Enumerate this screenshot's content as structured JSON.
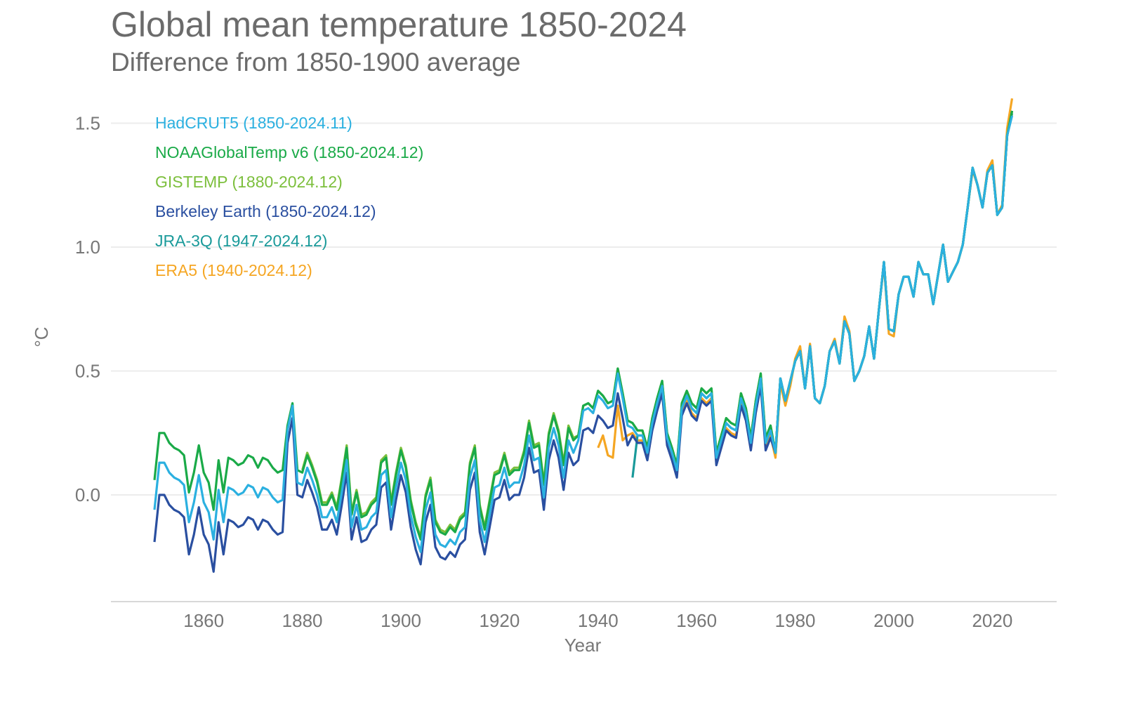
{
  "chart_data": {
    "type": "line",
    "title": "Global mean temperature 1850-2024",
    "subtitle": "Difference from 1850-1900 average",
    "xlabel": "Year",
    "ylabel": "°C",
    "xlim": [
      1850,
      2032
    ],
    "ylim": [
      -0.43,
      1.65
    ],
    "x_ticks": [
      "1860",
      "1880",
      "1900",
      "1920",
      "1940",
      "1960",
      "1980",
      "2000",
      "2020"
    ],
    "y_ticks": [
      "0.0",
      "0.5",
      "1.0",
      "1.5"
    ],
    "grid": "horizontal",
    "legend_placement": "top-left",
    "series": [
      {
        "name": "ERA5 (1940-2024.12)",
        "color": "#f5a623",
        "start": 1940,
        "values": [
          0.19,
          0.24,
          0.16,
          0.15,
          0.36,
          0.22,
          0.24,
          0.25,
          0.22,
          0.22,
          0.15,
          0.27,
          0.35,
          0.42,
          0.21,
          0.15,
          0.08,
          0.33,
          0.38,
          0.33,
          0.31,
          0.39,
          0.37,
          0.39,
          0.13,
          0.2,
          0.27,
          0.25,
          0.24,
          0.37,
          0.31,
          0.19,
          0.34,
          0.45,
          0.19,
          0.24,
          0.15,
          0.45,
          0.36,
          0.44,
          0.55,
          0.6,
          0.43,
          0.61,
          0.39,
          0.37,
          0.44,
          0.58,
          0.63,
          0.53,
          0.72,
          0.66,
          0.46,
          0.5,
          0.56,
          0.68,
          0.55,
          0.75,
          0.93,
          0.65,
          0.64,
          0.81,
          0.88,
          0.88,
          0.8,
          0.94,
          0.89,
          0.89,
          0.77,
          0.89,
          1.01,
          0.86,
          0.9,
          0.94,
          1.01,
          1.16,
          1.31,
          1.25,
          1.16,
          1.31,
          1.35,
          1.13,
          1.17,
          1.48,
          1.6
        ]
      },
      {
        "name": "JRA-3Q (1947-2024.12)",
        "color": "#1a9a9a",
        "start": 1947,
        "values": [
          0.07,
          0.24,
          0.24,
          0.17,
          0.29,
          0.37,
          0.44,
          0.23,
          0.17,
          0.1,
          0.35,
          0.4,
          0.35,
          0.33,
          0.41,
          0.39,
          0.41,
          0.15,
          0.22,
          0.29,
          0.27,
          0.26,
          0.39,
          0.33,
          0.21,
          0.36,
          0.47,
          0.21,
          0.26,
          0.17,
          0.47,
          0.38,
          0.46,
          0.54,
          0.58,
          0.43,
          0.6,
          0.39,
          0.37,
          0.44,
          0.58,
          0.62,
          0.53,
          0.7,
          0.65,
          0.46,
          0.5,
          0.56,
          0.68,
          0.55,
          0.75,
          0.94,
          0.67,
          0.66,
          0.81,
          0.88,
          0.88,
          0.8,
          0.94,
          0.89,
          0.89,
          0.77,
          0.89,
          1.01,
          0.86,
          0.9,
          0.94,
          1.01,
          1.16,
          1.32,
          1.25,
          1.16,
          1.3,
          1.33,
          1.13,
          1.16,
          1.45,
          1.54
        ]
      },
      {
        "name": "Berkeley Earth (1850-2024.12)",
        "color": "#2a4fa0",
        "start": 1850,
        "values": [
          -0.19,
          0.0,
          0.0,
          -0.04,
          -0.06,
          -0.07,
          -0.09,
          -0.24,
          -0.16,
          -0.05,
          -0.16,
          -0.2,
          -0.31,
          -0.11,
          -0.24,
          -0.1,
          -0.11,
          -0.13,
          -0.12,
          -0.09,
          -0.1,
          -0.14,
          -0.1,
          -0.11,
          -0.14,
          -0.16,
          -0.15,
          0.21,
          0.31,
          0.0,
          -0.01,
          0.06,
          0.01,
          -0.05,
          -0.14,
          -0.14,
          -0.1,
          -0.16,
          -0.04,
          0.09,
          -0.18,
          -0.09,
          -0.19,
          -0.18,
          -0.14,
          -0.12,
          0.03,
          0.05,
          -0.14,
          -0.02,
          0.08,
          0.01,
          -0.13,
          -0.22,
          -0.28,
          -0.11,
          -0.04,
          -0.21,
          -0.25,
          -0.26,
          -0.23,
          -0.25,
          -0.2,
          -0.18,
          0.02,
          0.09,
          -0.15,
          -0.24,
          -0.13,
          -0.02,
          -0.01,
          0.06,
          -0.02,
          0.0,
          0.0,
          0.07,
          0.19,
          0.09,
          0.1,
          -0.06,
          0.14,
          0.22,
          0.15,
          0.02,
          0.17,
          0.12,
          0.14,
          0.26,
          0.27,
          0.25,
          0.32,
          0.3,
          0.27,
          0.28,
          0.41,
          0.31,
          0.2,
          0.24,
          0.21,
          0.21,
          0.14,
          0.26,
          0.34,
          0.41,
          0.2,
          0.14,
          0.07,
          0.32,
          0.37,
          0.32,
          0.3,
          0.38,
          0.36,
          0.38,
          0.12,
          0.19,
          0.26,
          0.24,
          0.23,
          0.36,
          0.3,
          0.18,
          0.33,
          0.44,
          0.18,
          0.23,
          0.17,
          0.47,
          0.38,
          0.46,
          0.54,
          0.58,
          0.43,
          0.6,
          0.39,
          0.37,
          0.44,
          0.58,
          0.62,
          0.53,
          0.7,
          0.65,
          0.46,
          0.5,
          0.56,
          0.68,
          0.55,
          0.75,
          0.94,
          0.67,
          0.66,
          0.81,
          0.88,
          0.88,
          0.8,
          0.94,
          0.89,
          0.89,
          0.77,
          0.89,
          1.01,
          0.86,
          0.9,
          0.94,
          1.01,
          1.16,
          1.32,
          1.25,
          1.16,
          1.3,
          1.33,
          1.13,
          1.16,
          1.45,
          1.55
        ]
      },
      {
        "name": "GISTEMP (1880-2024.12)",
        "color": "#7cbf3c",
        "start": 1880,
        "values": [
          0.1,
          0.17,
          0.12,
          0.06,
          -0.03,
          -0.03,
          0.01,
          -0.05,
          0.07,
          0.2,
          -0.07,
          0.02,
          -0.08,
          -0.07,
          -0.03,
          -0.01,
          0.14,
          0.16,
          -0.03,
          0.09,
          0.19,
          0.12,
          -0.02,
          -0.11,
          -0.17,
          0.0,
          0.07,
          -0.1,
          -0.14,
          -0.15,
          -0.12,
          -0.14,
          -0.09,
          -0.07,
          0.13,
          0.2,
          -0.04,
          -0.13,
          -0.02,
          0.09,
          0.1,
          0.17,
          0.09,
          0.11,
          0.11,
          0.18,
          0.3,
          0.2,
          0.21,
          0.05,
          0.25,
          0.33,
          0.26,
          0.13,
          0.28,
          0.23,
          0.24,
          0.36,
          0.37,
          0.35,
          0.42,
          0.4,
          0.37,
          0.38,
          0.51,
          0.41,
          0.3,
          0.29,
          0.26,
          0.26,
          0.19,
          0.31,
          0.39,
          0.46,
          0.25,
          0.19,
          0.12,
          0.37,
          0.42,
          0.37,
          0.35,
          0.43,
          0.41,
          0.43,
          0.17,
          0.24,
          0.31,
          0.29,
          0.28,
          0.41,
          0.35,
          0.23,
          0.38,
          0.49,
          0.23,
          0.28,
          0.17,
          0.47,
          0.38,
          0.46,
          0.54,
          0.58,
          0.43,
          0.6,
          0.39,
          0.37,
          0.44,
          0.58,
          0.62,
          0.53,
          0.7,
          0.65,
          0.46,
          0.5,
          0.56,
          0.68,
          0.55,
          0.75,
          0.94,
          0.67,
          0.66,
          0.81,
          0.88,
          0.88,
          0.8,
          0.94,
          0.89,
          0.89,
          0.77,
          0.89,
          1.01,
          0.86,
          0.9,
          0.94,
          1.01,
          1.16,
          1.32,
          1.25,
          1.16,
          1.3,
          1.33,
          1.13,
          1.16,
          1.45,
          1.55
        ]
      },
      {
        "name": "NOAAGlobalTemp v6 (1850-2024.12)",
        "color": "#1aaa48",
        "start": 1850,
        "values": [
          0.06,
          0.25,
          0.25,
          0.21,
          0.19,
          0.18,
          0.16,
          0.01,
          0.09,
          0.2,
          0.09,
          0.05,
          -0.06,
          0.14,
          0.01,
          0.15,
          0.14,
          0.12,
          0.13,
          0.16,
          0.15,
          0.11,
          0.15,
          0.14,
          0.11,
          0.09,
          0.1,
          0.28,
          0.37,
          0.1,
          0.09,
          0.16,
          0.11,
          0.05,
          -0.04,
          -0.04,
          0.0,
          -0.06,
          0.06,
          0.19,
          -0.08,
          0.01,
          -0.09,
          -0.08,
          -0.04,
          -0.02,
          0.13,
          0.15,
          -0.04,
          0.08,
          0.18,
          0.11,
          -0.03,
          -0.12,
          -0.18,
          -0.01,
          0.06,
          -0.11,
          -0.15,
          -0.16,
          -0.13,
          -0.15,
          -0.1,
          -0.08,
          0.12,
          0.19,
          -0.05,
          -0.14,
          -0.03,
          0.08,
          0.09,
          0.16,
          0.08,
          0.1,
          0.1,
          0.17,
          0.29,
          0.19,
          0.2,
          0.04,
          0.24,
          0.32,
          0.25,
          0.12,
          0.27,
          0.22,
          0.24,
          0.36,
          0.37,
          0.35,
          0.42,
          0.4,
          0.37,
          0.38,
          0.51,
          0.41,
          0.3,
          0.29,
          0.26,
          0.26,
          0.19,
          0.31,
          0.39,
          0.46,
          0.25,
          0.19,
          0.12,
          0.37,
          0.42,
          0.37,
          0.35,
          0.43,
          0.41,
          0.43,
          0.17,
          0.24,
          0.31,
          0.29,
          0.28,
          0.41,
          0.35,
          0.23,
          0.38,
          0.49,
          0.23,
          0.28,
          0.17,
          0.47,
          0.38,
          0.46,
          0.54,
          0.58,
          0.43,
          0.6,
          0.39,
          0.37,
          0.44,
          0.58,
          0.62,
          0.53,
          0.7,
          0.65,
          0.46,
          0.5,
          0.56,
          0.68,
          0.55,
          0.75,
          0.94,
          0.67,
          0.66,
          0.81,
          0.88,
          0.88,
          0.8,
          0.94,
          0.89,
          0.89,
          0.77,
          0.89,
          1.01,
          0.86,
          0.9,
          0.94,
          1.01,
          1.16,
          1.32,
          1.25,
          1.16,
          1.3,
          1.33,
          1.13,
          1.16,
          1.45,
          1.55
        ]
      },
      {
        "name": "HadCRUT5 (1850-2024.11)",
        "color": "#2bb0e0",
        "start": 1850,
        "values": [
          -0.06,
          0.13,
          0.13,
          0.09,
          0.07,
          0.06,
          0.04,
          -0.11,
          -0.03,
          0.08,
          -0.03,
          -0.07,
          -0.18,
          0.02,
          -0.11,
          0.03,
          0.02,
          0.0,
          0.01,
          0.04,
          0.03,
          -0.01,
          0.03,
          0.02,
          -0.01,
          -0.03,
          -0.02,
          0.26,
          0.36,
          0.05,
          0.04,
          0.11,
          0.06,
          0.0,
          -0.09,
          -0.09,
          -0.05,
          -0.11,
          0.01,
          0.14,
          -0.13,
          -0.04,
          -0.14,
          -0.13,
          -0.09,
          -0.07,
          0.08,
          0.1,
          -0.09,
          0.03,
          0.13,
          0.06,
          -0.08,
          -0.17,
          -0.23,
          -0.06,
          0.01,
          -0.16,
          -0.2,
          -0.21,
          -0.18,
          -0.2,
          -0.15,
          -0.13,
          0.07,
          0.14,
          -0.1,
          -0.19,
          -0.08,
          0.03,
          0.04,
          0.11,
          0.03,
          0.05,
          0.05,
          0.12,
          0.24,
          0.14,
          0.15,
          -0.01,
          0.19,
          0.27,
          0.2,
          0.07,
          0.22,
          0.17,
          0.22,
          0.34,
          0.35,
          0.33,
          0.4,
          0.38,
          0.35,
          0.36,
          0.49,
          0.39,
          0.28,
          0.27,
          0.24,
          0.24,
          0.17,
          0.29,
          0.37,
          0.44,
          0.23,
          0.17,
          0.1,
          0.35,
          0.4,
          0.35,
          0.33,
          0.41,
          0.39,
          0.41,
          0.15,
          0.22,
          0.29,
          0.27,
          0.26,
          0.39,
          0.33,
          0.21,
          0.36,
          0.47,
          0.21,
          0.26,
          0.17,
          0.47,
          0.38,
          0.46,
          0.54,
          0.58,
          0.43,
          0.6,
          0.39,
          0.37,
          0.44,
          0.58,
          0.62,
          0.53,
          0.7,
          0.65,
          0.46,
          0.5,
          0.56,
          0.68,
          0.55,
          0.75,
          0.94,
          0.67,
          0.66,
          0.81,
          0.88,
          0.88,
          0.8,
          0.94,
          0.89,
          0.89,
          0.77,
          0.89,
          1.01,
          0.86,
          0.9,
          0.94,
          1.01,
          1.16,
          1.32,
          1.25,
          1.16,
          1.3,
          1.33,
          1.13,
          1.16,
          1.45,
          1.53
        ]
      }
    ],
    "legend_order": [
      "HadCRUT5 (1850-2024.11)",
      "NOAAGlobalTemp v6 (1850-2024.12)",
      "GISTEMP (1880-2024.12)",
      "Berkeley Earth (1850-2024.12)",
      "JRA-3Q (1947-2024.12)",
      "ERA5 (1940-2024.12)"
    ]
  }
}
